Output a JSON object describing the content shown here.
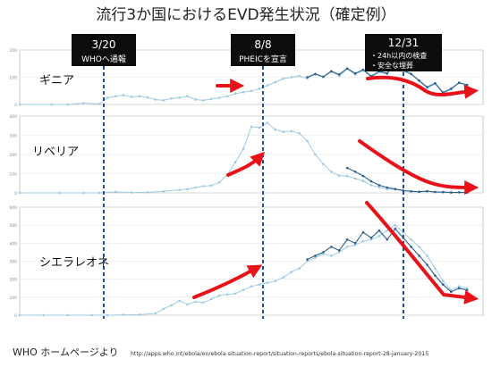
{
  "title": "流行3か国におけるEVD発生状況（確定例）",
  "annotations": [
    {
      "date": "3/20",
      "label": "WHOへ通報"
    },
    {
      "date": "8/8",
      "label": "PHEICを宣言"
    },
    {
      "date": "12/31",
      "bullets": [
        "・24h以内の検査",
        "・安全な埋葬"
      ]
    }
  ],
  "footer": {
    "source_label": "WHO ホームページより",
    "url": "http://apps.who.int/ebola/en/ebola-situation-report/situation-reports/ebola-situation-report-28-january-2015"
  },
  "colors": {
    "series_light": "#9ecae1",
    "series_dark": "#2b5f8a",
    "arrow": "#e8131a",
    "marker_line": "#1f4e9e"
  },
  "chart_data": [
    {
      "type": "line",
      "panel": "ギニア",
      "x_unit": "epi-week index (Jan 2014 – Jan 2015)",
      "xlim": [
        0,
        58
      ],
      "ylim": [
        0,
        200
      ],
      "y_ticks": [
        0,
        100,
        200
      ],
      "series": [
        {
          "values": [
            [
              0,
              0
            ],
            [
              4,
              0
            ],
            [
              6,
              0
            ],
            [
              8,
              5
            ],
            [
              10,
              2
            ],
            [
              11,
              25
            ],
            [
              12,
              30
            ],
            [
              13,
              34
            ],
            [
              14,
              28
            ],
            [
              15,
              30
            ],
            [
              16,
              26
            ],
            [
              17,
              18
            ],
            [
              18,
              15
            ],
            [
              19,
              22
            ],
            [
              20,
              25
            ],
            [
              21,
              30
            ],
            [
              22,
              18
            ],
            [
              23,
              15
            ],
            [
              24,
              20
            ],
            [
              25,
              25
            ],
            [
              26,
              30
            ],
            [
              27,
              40
            ],
            [
              28,
              45
            ],
            [
              29,
              50
            ],
            [
              30,
              58
            ],
            [
              31,
              70
            ],
            [
              32,
              82
            ],
            [
              33,
              95
            ],
            [
              34,
              100
            ],
            [
              35,
              105
            ],
            [
              36,
              96
            ],
            [
              37,
              110
            ],
            [
              38,
              100
            ],
            [
              39,
              120
            ],
            [
              40,
              105
            ],
            [
              41,
              130
            ],
            [
              42,
              110
            ],
            [
              43,
              125
            ],
            [
              44,
              100
            ],
            [
              45,
              118
            ],
            [
              46,
              112
            ],
            [
              47,
              160
            ],
            [
              48,
              122
            ],
            [
              49,
              110
            ],
            [
              50,
              86
            ],
            [
              51,
              60
            ],
            [
              52,
              75
            ],
            [
              53,
              40
            ],
            [
              54,
              55
            ],
            [
              55,
              78
            ],
            [
              56,
              70
            ]
          ]
        },
        {
          "values": [
            [
              36,
              100
            ],
            [
              37,
              112
            ],
            [
              38,
              102
            ],
            [
              39,
              122
            ],
            [
              40,
              110
            ],
            [
              41,
              132
            ],
            [
              42,
              114
            ],
            [
              43,
              128
            ],
            [
              44,
              104
            ],
            [
              45,
              122
            ],
            [
              46,
              114
            ],
            [
              47,
              152
            ],
            [
              48,
              126
            ],
            [
              49,
              112
            ],
            [
              50,
              88
            ],
            [
              51,
              64
            ],
            [
              52,
              78
            ],
            [
              53,
              44
            ],
            [
              54,
              58
            ],
            [
              55,
              80
            ],
            [
              56,
              72
            ]
          ]
        }
      ]
    },
    {
      "type": "line",
      "panel": "リベリア",
      "x_unit": "epi-week index (Jan 2014 – Jan 2015)",
      "xlim": [
        0,
        58
      ],
      "ylim": [
        0,
        400
      ],
      "y_ticks": [
        0,
        100,
        200,
        300,
        400
      ],
      "series": [
        {
          "values": [
            [
              0,
              0
            ],
            [
              5,
              0
            ],
            [
              8,
              0
            ],
            [
              10,
              0
            ],
            [
              12,
              5
            ],
            [
              14,
              2
            ],
            [
              16,
              3
            ],
            [
              18,
              8
            ],
            [
              20,
              15
            ],
            [
              21,
              20
            ],
            [
              22,
              28
            ],
            [
              23,
              35
            ],
            [
              24,
              38
            ],
            [
              25,
              55
            ],
            [
              26,
              95
            ],
            [
              27,
              160
            ],
            [
              28,
              230
            ],
            [
              29,
              345
            ],
            [
              30,
              340
            ],
            [
              31,
              365
            ],
            [
              32,
              330
            ],
            [
              33,
              318
            ],
            [
              34,
              322
            ],
            [
              35,
              310
            ],
            [
              36,
              270
            ],
            [
              37,
              200
            ],
            [
              38,
              150
            ],
            [
              39,
              110
            ],
            [
              40,
              90
            ],
            [
              41,
              88
            ],
            [
              42,
              75
            ],
            [
              43,
              62
            ],
            [
              44,
              40
            ],
            [
              45,
              30
            ],
            [
              46,
              20
            ],
            [
              47,
              18
            ],
            [
              48,
              10
            ],
            [
              49,
              8
            ],
            [
              50,
              5
            ],
            [
              51,
              8
            ],
            [
              52,
              4
            ],
            [
              53,
              3
            ],
            [
              54,
              2
            ],
            [
              55,
              3
            ],
            [
              56,
              1
            ]
          ]
        },
        {
          "values": [
            [
              41,
              130
            ],
            [
              42,
              110
            ],
            [
              43,
              88
            ],
            [
              44,
              60
            ],
            [
              45,
              40
            ],
            [
              46,
              28
            ],
            [
              47,
              20
            ],
            [
              48,
              12
            ],
            [
              49,
              8
            ],
            [
              50,
              6
            ],
            [
              51,
              9
            ],
            [
              52,
              5
            ],
            [
              53,
              4
            ],
            [
              54,
              2
            ],
            [
              55,
              3
            ],
            [
              56,
              1
            ]
          ]
        }
      ]
    },
    {
      "type": "line",
      "panel": "シエラレオネ",
      "x_unit": "epi-week index (Jan 2014 – Jan 2015)",
      "xlim": [
        0,
        58
      ],
      "ylim": [
        0,
        600
      ],
      "y_ticks": [
        0,
        100,
        200,
        300,
        400,
        500,
        600
      ],
      "series": [
        {
          "values": [
            [
              0,
              0
            ],
            [
              3,
              0
            ],
            [
              6,
              0
            ],
            [
              9,
              0
            ],
            [
              11,
              0
            ],
            [
              13,
              2
            ],
            [
              15,
              3
            ],
            [
              17,
              10
            ],
            [
              18,
              35
            ],
            [
              19,
              55
            ],
            [
              20,
              80
            ],
            [
              21,
              60
            ],
            [
              22,
              75
            ],
            [
              23,
              70
            ],
            [
              24,
              90
            ],
            [
              25,
              110
            ],
            [
              26,
              115
            ],
            [
              27,
              120
            ],
            [
              28,
              140
            ],
            [
              29,
              160
            ],
            [
              30,
              170
            ],
            [
              31,
              180
            ],
            [
              32,
              190
            ],
            [
              33,
              210
            ],
            [
              34,
              240
            ],
            [
              35,
              260
            ],
            [
              36,
              300
            ],
            [
              37,
              320
            ],
            [
              38,
              340
            ],
            [
              39,
              330
            ],
            [
              40,
              350
            ],
            [
              41,
              380
            ],
            [
              42,
              390
            ],
            [
              43,
              410
            ],
            [
              44,
              420
            ],
            [
              45,
              440
            ],
            [
              46,
              470
            ],
            [
              47,
              500
            ],
            [
              48,
              460
            ],
            [
              49,
              420
            ],
            [
              50,
              380
            ],
            [
              51,
              330
            ],
            [
              52,
              260
            ],
            [
              53,
              190
            ],
            [
              54,
              140
            ],
            [
              55,
              160
            ],
            [
              56,
              150
            ]
          ]
        },
        {
          "values": [
            [
              36,
              310
            ],
            [
              37,
              330
            ],
            [
              38,
              350
            ],
            [
              39,
              380
            ],
            [
              40,
              360
            ],
            [
              41,
              420
            ],
            [
              42,
              400
            ],
            [
              43,
              460
            ],
            [
              44,
              430
            ],
            [
              45,
              470
            ],
            [
              46,
              420
            ],
            [
              47,
              480
            ],
            [
              48,
              430
            ],
            [
              49,
              380
            ],
            [
              50,
              330
            ],
            [
              51,
              280
            ],
            [
              52,
              220
            ],
            [
              53,
              170
            ],
            [
              54,
              130
            ],
            [
              55,
              150
            ],
            [
              56,
              140
            ]
          ]
        }
      ]
    }
  ]
}
